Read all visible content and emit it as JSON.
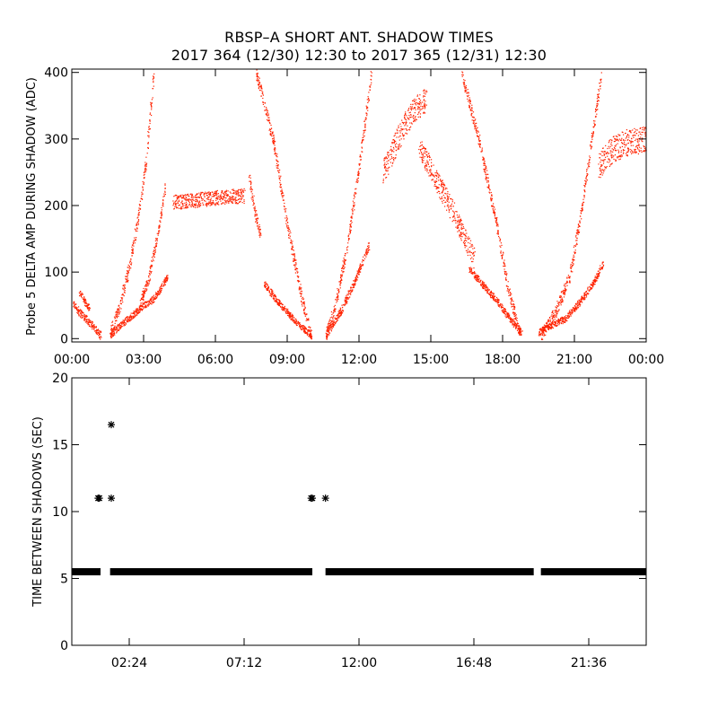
{
  "title": "RBSP–A SHORT ANT. SHADOW TIMES",
  "subtitle": "2017 364 (12/30) 12:30 to 2017 365 (12/31) 12:30",
  "colors": {
    "top_points": "#ff2200",
    "bottom_points": "#000000",
    "axes": "#000000"
  },
  "chart_data": [
    {
      "type": "scatter",
      "title": "",
      "xlabel": "",
      "ylabel": "Probe 5 DELTA AMP DURING SHADOW (ADC)",
      "xlim": [
        0,
        24
      ],
      "ylim": [
        -5,
        405
      ],
      "x_unit": "hours",
      "xticks": [
        0,
        3,
        6,
        9,
        12,
        15,
        18,
        21,
        24
      ],
      "xtick_labels": [
        "00:00",
        "03:00",
        "06:00",
        "09:00",
        "12:00",
        "15:00",
        "18:00",
        "21:00",
        "00:00"
      ],
      "yticks": [
        0,
        100,
        200,
        300,
        400
      ],
      "ytick_labels": [
        "0",
        "100",
        "200",
        "300",
        "400"
      ],
      "marker": "dot",
      "bands": [
        {
          "x": [
            0.0,
            0.3,
            0.6,
            0.9,
            1.2
          ],
          "y": [
            55,
            40,
            30,
            18,
            5
          ],
          "spread": 12
        },
        {
          "x": [
            0.3,
            0.55,
            0.75
          ],
          "y": [
            70,
            55,
            45
          ],
          "spread": 10
        },
        {
          "x": [
            1.6,
            2.0,
            2.5,
            3.0,
            3.4,
            3.7,
            4.0
          ],
          "y": [
            5,
            20,
            35,
            50,
            60,
            75,
            95
          ],
          "spread": 10
        },
        {
          "x": [
            1.6,
            2.0,
            2.4,
            2.8,
            3.1,
            3.4
          ],
          "y": [
            10,
            50,
            110,
            190,
            270,
            395
          ],
          "spread": 18
        },
        {
          "x": [
            2.8,
            3.2,
            3.6,
            3.9
          ],
          "y": [
            50,
            90,
            160,
            230
          ],
          "spread": 14
        },
        {
          "x": [
            4.2,
            5.0,
            6.0,
            7.0,
            7.2
          ],
          "y": [
            205,
            208,
            212,
            215,
            215
          ],
          "spread": 22
        },
        {
          "x": [
            7.4,
            7.7,
            7.9
          ],
          "y": [
            240,
            180,
            150
          ],
          "spread": 20
        },
        {
          "x": [
            7.7,
            8.4,
            9.0,
            9.6,
            10.0
          ],
          "y": [
            400,
            300,
            170,
            60,
            5
          ],
          "spread": 18
        },
        {
          "x": [
            8.0,
            8.5,
            9.0,
            9.5,
            10.0
          ],
          "y": [
            85,
            60,
            40,
            20,
            5
          ],
          "spread": 10
        },
        {
          "x": [
            10.6,
            11.0,
            11.5,
            12.0,
            12.5
          ],
          "y": [
            5,
            50,
            140,
            260,
            395
          ],
          "spread": 18
        },
        {
          "x": [
            10.6,
            11.2,
            11.8,
            12.4
          ],
          "y": [
            5,
            40,
            85,
            140
          ],
          "spread": 12
        },
        {
          "x": [
            13.0,
            13.6,
            14.2,
            14.8
          ],
          "y": [
            250,
            300,
            340,
            360
          ],
          "spread": 38
        },
        {
          "x": [
            14.5,
            15.2,
            16.0,
            16.8
          ],
          "y": [
            290,
            240,
            185,
            120
          ],
          "spread": 34
        },
        {
          "x": [
            16.3,
            17.0,
            17.7,
            18.2,
            18.7
          ],
          "y": [
            395,
            300,
            180,
            80,
            10
          ],
          "spread": 18
        },
        {
          "x": [
            16.6,
            17.2,
            17.8,
            18.3,
            18.8
          ],
          "y": [
            105,
            80,
            55,
            30,
            8
          ],
          "spread": 10
        },
        {
          "x": [
            19.5,
            20.0,
            20.6,
            21.2,
            21.8,
            22.2
          ],
          "y": [
            10,
            20,
            30,
            55,
            85,
            115
          ],
          "spread": 10
        },
        {
          "x": [
            19.6,
            20.2,
            20.8,
            21.2,
            21.6,
            22.1
          ],
          "y": [
            5,
            40,
            95,
            175,
            270,
            395
          ],
          "spread": 18
        },
        {
          "x": [
            22.0,
            22.6,
            23.2,
            24.0
          ],
          "y": [
            260,
            285,
            295,
            300
          ],
          "spread": 40
        }
      ]
    },
    {
      "type": "scatter",
      "title": "",
      "xlabel": "",
      "ylabel": "TIME BETWEEN SHADOWS (SEC)",
      "xlim": [
        0,
        24
      ],
      "ylim": [
        0,
        20
      ],
      "x_unit": "hours",
      "xticks": [
        2.4,
        7.2,
        12.0,
        16.8,
        21.6
      ],
      "xtick_labels": [
        "02:24",
        "07:12",
        "12:00",
        "16:48",
        "21:36"
      ],
      "yticks": [
        0,
        5,
        10,
        15,
        20
      ],
      "ytick_labels": [
        "0",
        "5",
        "10",
        "15",
        "20"
      ],
      "marker": "asterisk",
      "baseline_value": 5.5,
      "baseline_segments": [
        [
          0.0,
          1.2
        ],
        [
          1.6,
          10.05
        ],
        [
          10.6,
          19.3
        ],
        [
          19.6,
          24.0
        ]
      ],
      "points": [
        {
          "x": 1.1,
          "y": 11.0
        },
        {
          "x": 1.15,
          "y": 11.0
        },
        {
          "x": 1.65,
          "y": 16.5
        },
        {
          "x": 1.65,
          "y": 11.0
        },
        {
          "x": 10.0,
          "y": 11.0
        },
        {
          "x": 10.05,
          "y": 11.0
        },
        {
          "x": 10.6,
          "y": 11.0
        }
      ]
    }
  ]
}
